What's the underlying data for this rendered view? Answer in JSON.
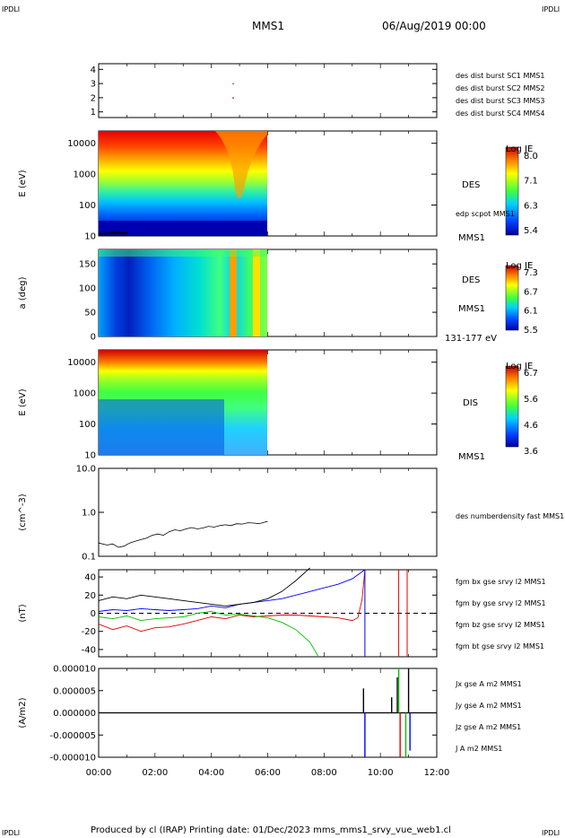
{
  "header": {
    "corner_left": "IPDLI",
    "corner_right": "IPDLI",
    "title": "MMS1",
    "date": "06/Aug/2019 00:00"
  },
  "footer": {
    "text": "Produced by cl (IRAP)   Printing date: 01/Dec/2023   mms_mms1_srvy_vue_web1.cl",
    "corner_left": "IPDLI",
    "corner_right": "IPDLI"
  },
  "colors": {
    "blue": "#0000ff",
    "magenta": "#e000e0",
    "red": "#e00000",
    "green": "#00c000",
    "corner": "#0000c0"
  },
  "chart_data": [
    {
      "type": "scatter",
      "name": "panel-burst",
      "yticks": [
        "1",
        "2",
        "3",
        "4"
      ],
      "ylim": [
        0.6,
        4.4
      ],
      "legend": [
        {
          "text": "des dist burst SC1 MMS1",
          "color": "#0000ff"
        },
        {
          "text": "des dist burst SC2 MMS2",
          "color": "#e000e0"
        },
        {
          "text": "des dist burst SC3 MMS3",
          "color": "#e00000"
        },
        {
          "text": "des dist burst SC4 MMS4",
          "color": "#00c000"
        }
      ],
      "points": [
        {
          "t": 4.75,
          "y": 3.0,
          "color": "#e000e0"
        },
        {
          "t": 4.75,
          "y": 2.0,
          "color": "#e00000"
        }
      ]
    },
    {
      "type": "heatmap",
      "name": "panel-des-energy",
      "ylabel": "E (eV)",
      "yscale": "log",
      "yticks": [
        "10",
        "100",
        "1000",
        "10000"
      ],
      "side_label": "DES",
      "bottom_label": "MMS1",
      "overlay_label": "edp scpot MMS1",
      "colorbar": {
        "title": "Log JE",
        "ticks": [
          "8.0",
          "7.1",
          "6.3",
          "5.4"
        ]
      },
      "data_end_time": "06:00"
    },
    {
      "type": "heatmap",
      "name": "panel-des-pitch",
      "ylabel": "a (deg)",
      "yticks": [
        "0",
        "50",
        "100",
        "150"
      ],
      "ylim": [
        0,
        180
      ],
      "side_label": "DES",
      "bottom_label": "MMS1",
      "energy_label": "131-177 eV",
      "colorbar": {
        "title": "Log JE",
        "ticks": [
          "7.3",
          "6.7",
          "6.1",
          "5.5"
        ]
      },
      "data_end_time": "06:00"
    },
    {
      "type": "heatmap",
      "name": "panel-dis-energy",
      "ylabel": "E (eV)",
      "yscale": "log",
      "yticks": [
        "10",
        "100",
        "1000",
        "10000"
      ],
      "side_label": "DIS",
      "bottom_label": "MMS1",
      "colorbar": {
        "title": "Log JE",
        "ticks": [
          "6.7",
          "5.6",
          "4.6",
          "3.6"
        ]
      },
      "data_end_time": "06:00"
    },
    {
      "type": "line",
      "name": "panel-density",
      "ylabel": "(cm^-3)",
      "yscale": "log",
      "yticks": [
        "0.1",
        "1.0",
        "10.0"
      ],
      "ylim": [
        0.1,
        10
      ],
      "series": [
        {
          "name": "des numberdensity fast MMS1",
          "color": "#000000",
          "t": [
            0,
            0.3,
            0.5,
            0.7,
            0.9,
            1.1,
            1.3,
            1.5,
            1.7,
            1.9,
            2.1,
            2.3,
            2.5,
            2.7,
            2.9,
            3.1,
            3.3,
            3.5,
            3.7,
            3.9,
            4.1,
            4.3,
            4.5,
            4.7,
            4.9,
            5.1,
            5.3,
            5.5,
            5.7,
            5.9,
            6.0
          ],
          "values": [
            0.2,
            0.18,
            0.19,
            0.16,
            0.17,
            0.2,
            0.22,
            0.24,
            0.26,
            0.3,
            0.32,
            0.3,
            0.36,
            0.4,
            0.38,
            0.42,
            0.45,
            0.42,
            0.44,
            0.48,
            0.46,
            0.5,
            0.52,
            0.5,
            0.55,
            0.54,
            0.58,
            0.57,
            0.55,
            0.6,
            0.62
          ]
        }
      ]
    },
    {
      "type": "line",
      "name": "panel-magnetic-field",
      "ylabel": "(nT)",
      "yticks": [
        "-40",
        "-20",
        "0",
        "20",
        "40"
      ],
      "ylim": [
        -48,
        48
      ],
      "series": [
        {
          "name": "fgm bx gse srvy l2 MMS1",
          "color": "#e00000",
          "t": [
            0,
            0.5,
            1.0,
            1.5,
            2.0,
            2.5,
            3.0,
            3.5,
            4.0,
            4.5,
            5.0,
            5.5,
            6.0,
            6.5,
            7.0,
            7.5,
            8.0,
            8.5,
            9.0,
            9.2,
            9.35,
            9.45
          ],
          "values": [
            -12,
            -18,
            -14,
            -20,
            -16,
            -15,
            -12,
            -8,
            -4,
            -6,
            -2,
            -4,
            -3,
            -2,
            -2,
            -3,
            -4,
            -5,
            -8,
            -5,
            15,
            48
          ]
        },
        {
          "name": "fgm by gse srvy l2 MMS1",
          "color": "#00c000",
          "t": [
            0,
            0.5,
            1.0,
            1.5,
            2.0,
            2.5,
            3.0,
            3.5,
            4.0,
            4.5,
            5.0,
            5.5,
            6.0,
            6.5,
            7.0,
            7.5,
            7.8
          ],
          "values": [
            -4,
            -6,
            -3,
            -8,
            -6,
            -5,
            -4,
            0,
            2,
            -2,
            -1,
            -3,
            -5,
            -10,
            -18,
            -32,
            -48
          ]
        },
        {
          "name": "fgm bz gse srvy l2 MMS1",
          "color": "#0000ff",
          "t": [
            0,
            0.5,
            1.0,
            1.5,
            2.0,
            2.5,
            3.0,
            3.5,
            4.0,
            4.5,
            5.0,
            5.5,
            6.0,
            6.5,
            7.0,
            7.5,
            8.0,
            8.5,
            9.0,
            9.45
          ],
          "values": [
            2,
            4,
            3,
            5,
            4,
            3,
            4,
            5,
            8,
            6,
            10,
            12,
            14,
            16,
            20,
            24,
            28,
            32,
            38,
            48
          ]
        },
        {
          "name": "fgm bt gse srvy l2 MMS1",
          "color": "#000000",
          "t": [
            0,
            0.5,
            1.0,
            1.5,
            2.0,
            2.5,
            3.0,
            3.5,
            4.0,
            4.5,
            5.0,
            5.5,
            6.0,
            6.5,
            7.0,
            7.5
          ],
          "values": [
            14,
            18,
            16,
            20,
            18,
            16,
            14,
            12,
            10,
            8,
            10,
            12,
            16,
            24,
            36,
            50
          ]
        }
      ],
      "vlines": [
        {
          "t": 9.45,
          "color": "#0000ff"
        },
        {
          "t": 10.65,
          "color": "#e00000"
        },
        {
          "t": 10.95,
          "color": "#e00000"
        }
      ],
      "hline_dashed": 0
    },
    {
      "type": "line",
      "name": "panel-current-density",
      "ylabel": "(A/m2)",
      "yticks": [
        "-0.000010",
        "-0.000005",
        "0.000000",
        "0.000005",
        "0.000010"
      ],
      "ylim": [
        -1e-05,
        1e-05
      ],
      "legend": [
        {
          "text": "Jx gse A m2 MMS1",
          "color": "#e00000"
        },
        {
          "text": "Jy gse A m2 MMS1",
          "color": "#00c000"
        },
        {
          "text": "Jz gse A m2 MMS1",
          "color": "#0000ff"
        },
        {
          "text": "J A m2 MMS1",
          "color": "#000000"
        }
      ],
      "spikes": [
        {
          "t": 9.4,
          "value": 5.5e-06,
          "color": "#000000"
        },
        {
          "t": 9.45,
          "value": -1e-05,
          "color": "#0000ff"
        },
        {
          "t": 10.4,
          "value": 3.5e-06,
          "color": "#000000"
        },
        {
          "t": 10.6,
          "value": 8e-06,
          "color": "#000000"
        },
        {
          "t": 10.65,
          "value": 1e-05,
          "color": "#00c000"
        },
        {
          "t": 10.7,
          "value": -1e-05,
          "color": "#e00000"
        },
        {
          "t": 10.9,
          "value": -1e-05,
          "color": "#00c000"
        },
        {
          "t": 11.0,
          "value": 1e-05,
          "color": "#000000"
        },
        {
          "t": 11.05,
          "value": -8.5e-06,
          "color": "#0000ff"
        }
      ]
    }
  ],
  "time_axis": {
    "ticks": [
      "00:00",
      "02:00",
      "04:00",
      "06:00",
      "08:00",
      "10:00",
      "12:00"
    ],
    "range_hours": [
      0,
      12
    ]
  }
}
